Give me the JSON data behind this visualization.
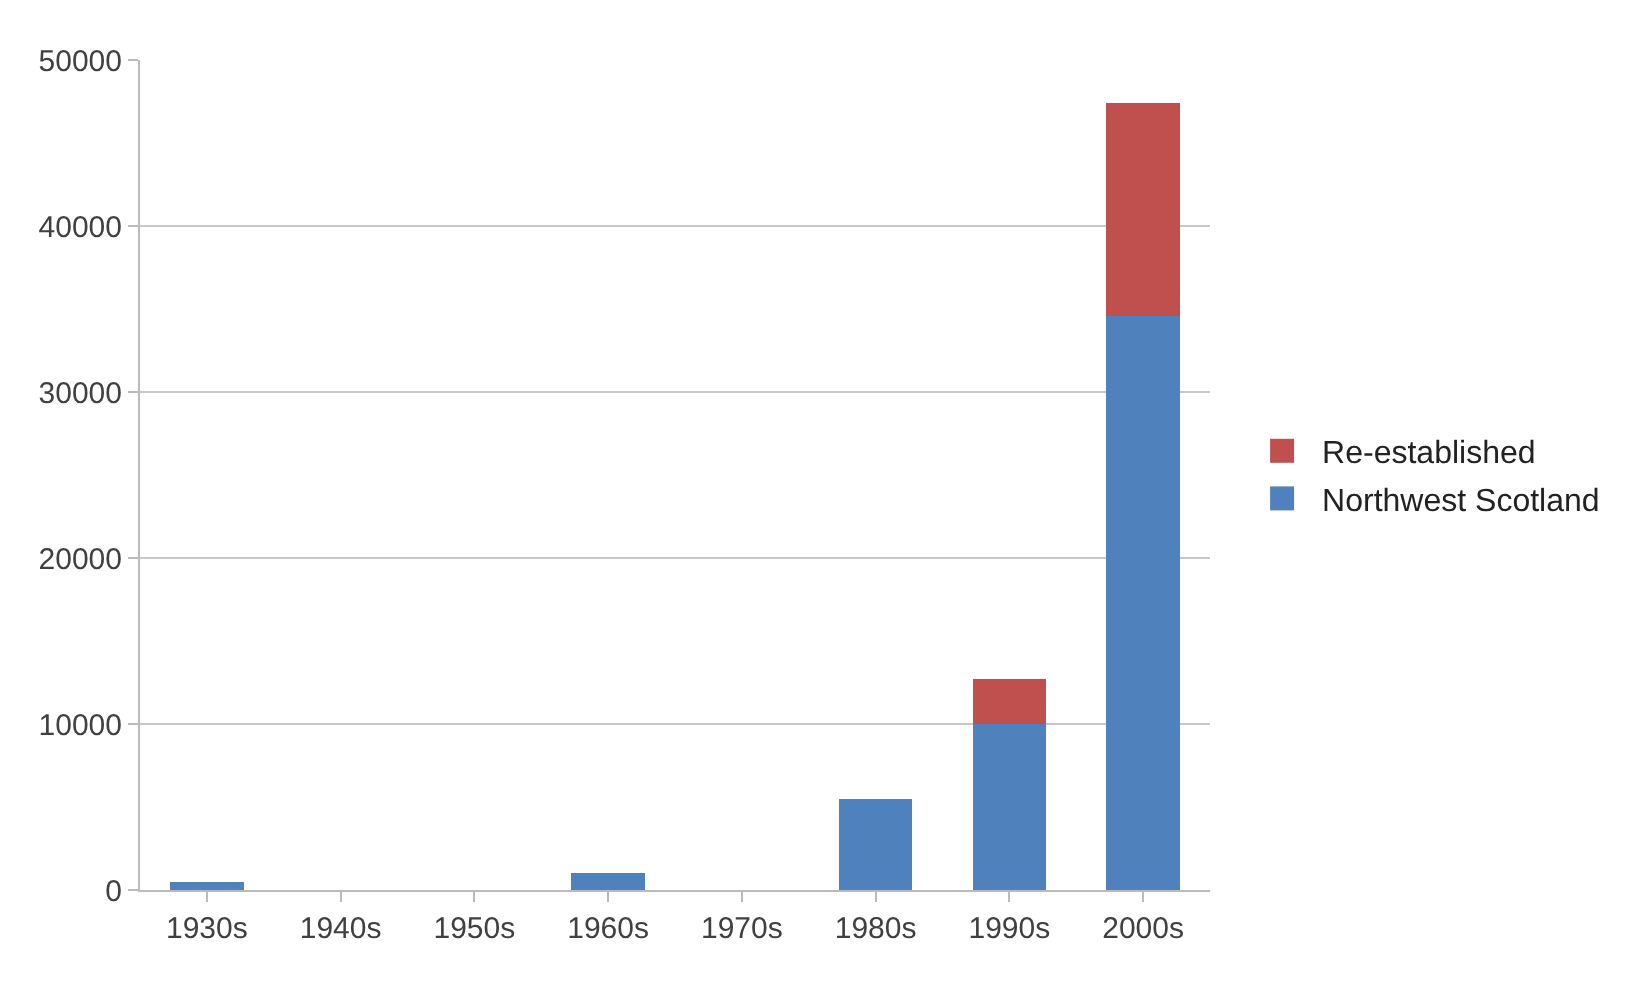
{
  "chart_data": {
    "type": "bar",
    "stacked": true,
    "categories": [
      "1930s",
      "1940s",
      "1950s",
      "1960s",
      "1970s",
      "1980s",
      "1990s",
      "2000s"
    ],
    "series": [
      {
        "name": "Northwest Scotland",
        "color": "#4f81bd",
        "values": [
          500,
          0,
          0,
          1000,
          0,
          5500,
          10000,
          34600
        ]
      },
      {
        "name": "Re-established",
        "color": "#c0504d",
        "values": [
          0,
          0,
          0,
          0,
          0,
          0,
          2700,
          12800
        ]
      }
    ],
    "ylim": [
      0,
      50000
    ],
    "yticks": [
      0,
      10000,
      20000,
      30000,
      40000,
      50000
    ],
    "grid": "y",
    "legend": "right"
  }
}
